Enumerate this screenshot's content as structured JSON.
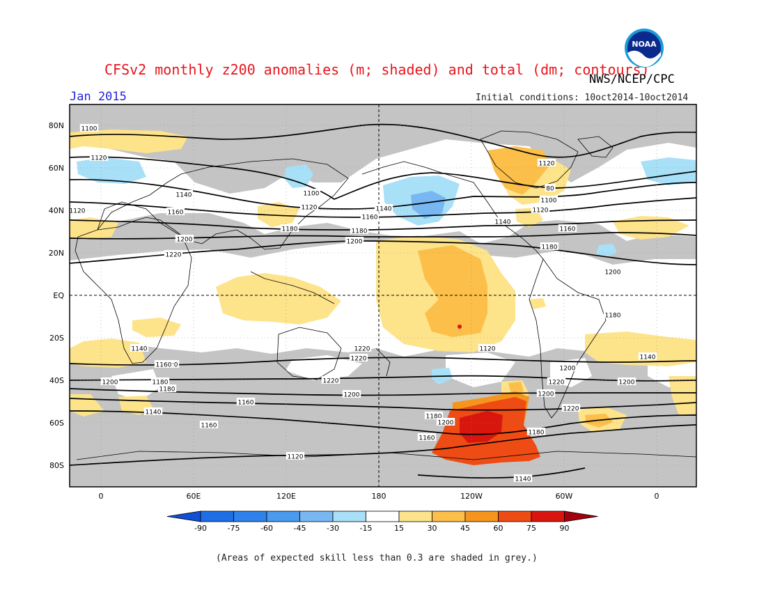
{
  "header": {
    "title": "CFSv2 monthly z200 anomalies (m; shaded) and total (dm; contours)",
    "agency": "NWS/NCEP/CPC",
    "date": "Jan 2015",
    "initial_conditions": "Initial conditions: 10oct2014-10oct2014",
    "logo_text": "NOAA"
  },
  "map": {
    "lat_labels": [
      "80N",
      "60N",
      "40N",
      "20N",
      "EQ",
      "20S",
      "40S",
      "60S",
      "80S"
    ],
    "lon_labels": [
      "0",
      "60E",
      "120E",
      "180",
      "120W",
      "60W",
      "0"
    ],
    "colors": {
      "land_lines": "#000000",
      "grey_low_skill": "#c4c4c4",
      "contour": "#000000"
    },
    "contour_labels": [
      "1100",
      "1120",
      "1140",
      "1160",
      "1180",
      "1200",
      "1220",
      "1220",
      "1200",
      "1180",
      "1160",
      "1140",
      "1120",
      "1100",
      "1120",
      "1140",
      "1160",
      "1180",
      "1200",
      "1220",
      "1220",
      "1200",
      "1180",
      "1160",
      "1140",
      "1120",
      "1120",
      "80",
      "1100",
      "1120",
      "1140",
      "1160",
      "1180",
      "1200",
      "1220",
      "1200",
      "1180",
      "1160",
      "1140",
      "1200",
      "1220",
      "1200",
      "1180",
      "1160",
      "1140",
      "1120",
      "1220",
      "1200",
      "1180"
    ]
  },
  "colorbar": {
    "labels": [
      "-90",
      "-75",
      "-60",
      "-45",
      "-30",
      "-15",
      "15",
      "30",
      "45",
      "60",
      "75",
      "90"
    ],
    "colors": [
      "#1e6ee6",
      "#2e82ea",
      "#4a9aee",
      "#78b8f2",
      "#a8e0f8",
      "#ffffff",
      "#fde38a",
      "#fbbf4a",
      "#f6951e",
      "#ee4c14",
      "#d8160e"
    ],
    "end_low": "#1050d8",
    "end_high": "#a4000c"
  },
  "footnote": "(Areas of expected skill less than 0.3 are shaded in grey.)"
}
